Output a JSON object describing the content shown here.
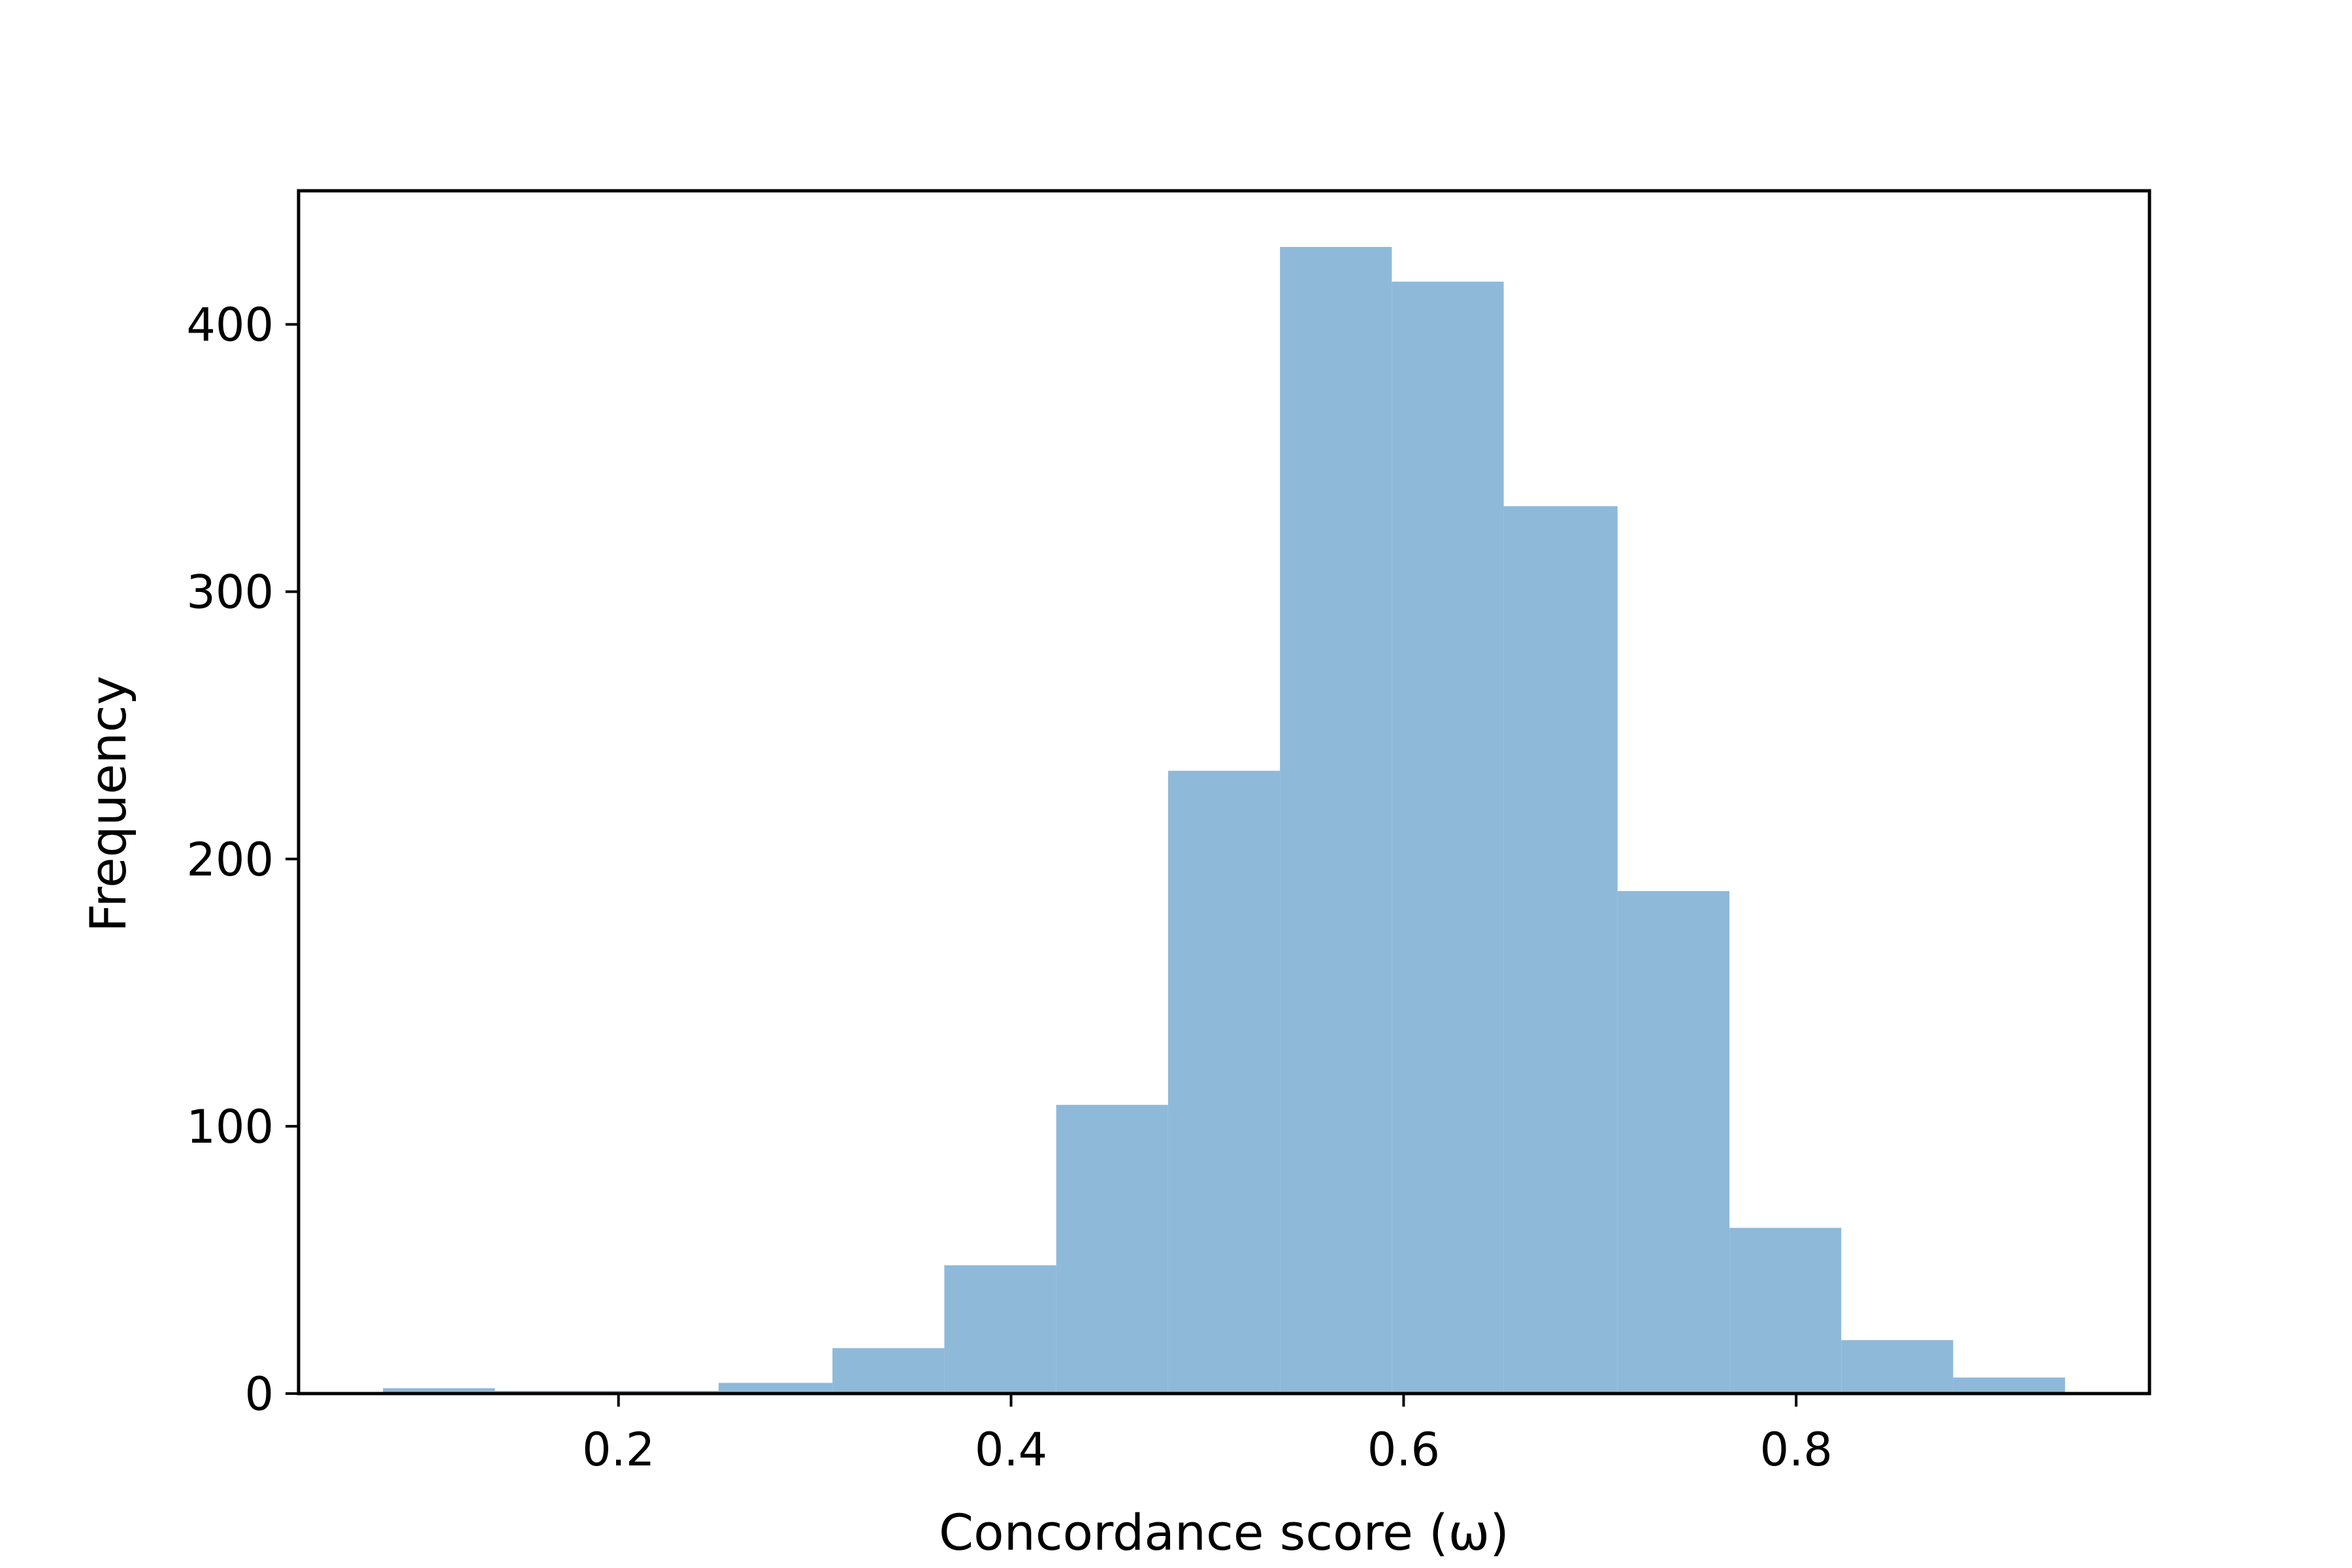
{
  "chart_data": {
    "type": "bar",
    "xlabel": "Concordance score (ω)",
    "ylabel": "Frequency",
    "xlim": [
      0.037,
      0.98
    ],
    "ylim": [
      0,
      450
    ],
    "grid": false,
    "bar_color": "#8fb9d9",
    "x_ticks": [
      {
        "value": 0.2,
        "label": "0.2"
      },
      {
        "value": 0.4,
        "label": "0.4"
      },
      {
        "value": 0.6,
        "label": "0.6"
      },
      {
        "value": 0.8,
        "label": "0.8"
      }
    ],
    "y_ticks": [
      {
        "value": 0,
        "label": "0"
      },
      {
        "value": 100,
        "label": "100"
      },
      {
        "value": 200,
        "label": "200"
      },
      {
        "value": 300,
        "label": "300"
      },
      {
        "value": 400,
        "label": "400"
      }
    ],
    "bins": [
      {
        "x0": 0.08,
        "x1": 0.137,
        "count": 2
      },
      {
        "x0": 0.137,
        "x1": 0.194,
        "count": 1
      },
      {
        "x0": 0.194,
        "x1": 0.251,
        "count": 1
      },
      {
        "x0": 0.251,
        "x1": 0.309,
        "count": 4
      },
      {
        "x0": 0.309,
        "x1": 0.366,
        "count": 17
      },
      {
        "x0": 0.366,
        "x1": 0.423,
        "count": 48
      },
      {
        "x0": 0.423,
        "x1": 0.48,
        "count": 108
      },
      {
        "x0": 0.48,
        "x1": 0.537,
        "count": 233
      },
      {
        "x0": 0.537,
        "x1": 0.594,
        "count": 429
      },
      {
        "x0": 0.594,
        "x1": 0.651,
        "count": 416
      },
      {
        "x0": 0.651,
        "x1": 0.709,
        "count": 332
      },
      {
        "x0": 0.709,
        "x1": 0.766,
        "count": 188
      },
      {
        "x0": 0.766,
        "x1": 0.823,
        "count": 62
      },
      {
        "x0": 0.823,
        "x1": 0.88,
        "count": 20
      },
      {
        "x0": 0.88,
        "x1": 0.937,
        "count": 6
      }
    ]
  }
}
